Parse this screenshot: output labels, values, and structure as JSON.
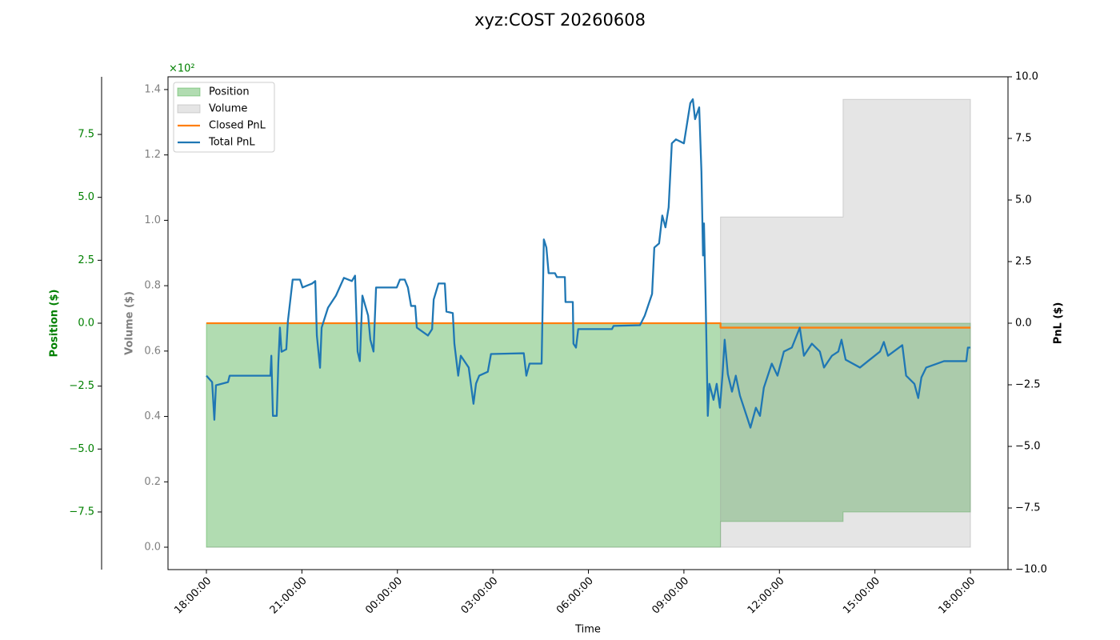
{
  "chart_data": {
    "type": "line",
    "title": "xyz:COST 20260608",
    "xlabel": "Time",
    "ylabel": "Position ($)",
    "y2label": "PnL ($)",
    "y3label": "Volume ($)",
    "y_offset_label": "×10²",
    "xlim": [
      -1.206,
      25.18
    ],
    "xticks": [
      {
        "value": 0,
        "label": "18:00:00"
      },
      {
        "value": 3,
        "label": "21:00:00"
      },
      {
        "value": 6,
        "label": "00:00:00"
      },
      {
        "value": 9,
        "label": "03:00:00"
      },
      {
        "value": 12,
        "label": "06:00:00"
      },
      {
        "value": 15,
        "label": "09:00:00"
      },
      {
        "value": 18,
        "label": "12:00:00"
      },
      {
        "value": 21,
        "label": "15:00:00"
      },
      {
        "value": 24,
        "label": "18:00:00"
      }
    ],
    "ylim": [
      -9.79,
      9.79
    ],
    "yticks": [
      {
        "value": -7.5,
        "label": "−7.5"
      },
      {
        "value": -5,
        "label": "−5.0"
      },
      {
        "value": -2.5,
        "label": "−2.5"
      },
      {
        "value": 0,
        "label": "0.0"
      },
      2.5,
      {
        "value": 5,
        "label": "5.0"
      },
      7.5
    ],
    "y2lim": [
      -10,
      10
    ],
    "y2ticks": [
      {
        "value": -10,
        "label": "−10.0"
      },
      {
        "value": -7.5,
        "label": "−7.5"
      },
      {
        "value": -5,
        "label": "−5.0"
      },
      {
        "value": -2.5,
        "label": "−2.5"
      },
      {
        "value": 0,
        "label": "0.0"
      },
      2.5,
      {
        "value": 5,
        "label": "5.0"
      },
      7.5,
      {
        "value": 10,
        "label": "10.0"
      }
    ],
    "y3lim": [
      -0.0685,
      1.439
    ],
    "y3ticks": [
      {
        "value": 0,
        "label": "0.0"
      },
      0.2,
      0.4,
      0.6,
      0.8,
      {
        "value": 1,
        "label": "1.0"
      },
      1.2,
      1.4
    ],
    "legend": "upper left",
    "series": [
      {
        "name": "Position",
        "kind": "area",
        "axis": "y",
        "color": "#2ca02c",
        "x": [
          0,
          16.15,
          16.15,
          20.0,
          20.0,
          24.0
        ],
        "values": [
          -8.9,
          -8.9,
          -7.88,
          -7.88,
          -7.5,
          -7.5
        ]
      },
      {
        "name": "Volume",
        "kind": "area",
        "axis": "y3",
        "color": "#999999",
        "x": [
          0,
          16.15,
          16.15,
          20.0,
          20.0,
          24.0
        ],
        "values": [
          0,
          0,
          1.01,
          1.01,
          1.37,
          1.37
        ]
      },
      {
        "name": "Closed PnL",
        "kind": "line",
        "axis": "y2",
        "color": "#ff7f0e",
        "x": [
          0,
          16.15,
          16.15,
          24.0
        ],
        "values": [
          0,
          0,
          -0.18,
          -0.18
        ]
      },
      {
        "name": "Total PnL",
        "kind": "line",
        "axis": "y2",
        "color": "#1f77b4",
        "x": [
          0.0,
          0.18,
          0.25,
          0.3,
          0.68,
          0.73,
          2.01,
          2.04,
          2.09,
          2.21,
          2.26,
          2.31,
          2.36,
          2.51,
          2.56,
          2.71,
          2.94,
          3.02,
          3.32,
          3.42,
          3.47,
          3.57,
          3.62,
          3.82,
          4.07,
          4.32,
          4.57,
          4.67,
          4.75,
          4.82,
          4.9,
          5.08,
          5.15,
          5.25,
          5.33,
          5.98,
          6.08,
          6.23,
          6.33,
          6.43,
          6.56,
          6.61,
          6.96,
          7.09,
          7.14,
          7.29,
          7.49,
          7.54,
          7.74,
          7.79,
          7.91,
          7.99,
          8.24,
          8.39,
          8.47,
          8.57,
          8.84,
          8.94,
          9.97,
          10.05,
          10.15,
          10.53,
          10.6,
          10.68,
          10.75,
          10.95,
          11.01,
          11.26,
          11.28,
          11.51,
          11.53,
          11.61,
          11.68,
          12.74,
          12.79,
          13.62,
          13.77,
          14.0,
          14.07,
          14.22,
          14.32,
          14.42,
          14.52,
          14.62,
          14.75,
          15.0,
          15.2,
          15.28,
          15.35,
          15.48,
          15.55,
          15.6,
          15.63,
          15.68,
          15.75,
          15.8,
          15.93,
          16.03,
          16.13,
          16.21,
          16.28,
          16.38,
          16.51,
          16.63,
          16.76,
          17.01,
          17.09,
          17.26,
          17.39,
          17.51,
          17.76,
          17.94,
          18.14,
          18.39,
          18.64,
          18.77,
          19.02,
          19.27,
          19.4,
          19.65,
          19.85,
          19.95,
          20.08,
          20.53,
          20.78,
          21.16,
          21.28,
          21.41,
          21.86,
          21.98,
          22.24,
          22.36,
          22.46,
          22.61,
          23.17,
          23.87,
          23.92,
          24.0
        ],
        "values": [
          -2.13,
          -2.39,
          -3.92,
          -2.52,
          -2.39,
          -2.13,
          -2.13,
          -1.32,
          -3.76,
          -3.76,
          -1.61,
          -0.18,
          -1.16,
          -1.06,
          0.08,
          1.77,
          1.77,
          1.45,
          1.61,
          1.71,
          -0.5,
          -1.81,
          -0.18,
          0.63,
          1.12,
          1.84,
          1.71,
          1.93,
          -1.15,
          -1.54,
          1.12,
          0.31,
          -0.67,
          -1.15,
          1.45,
          1.45,
          1.77,
          1.77,
          1.45,
          0.7,
          0.7,
          -0.18,
          -0.5,
          -0.24,
          0.96,
          1.61,
          1.61,
          0.47,
          0.41,
          -0.83,
          -2.13,
          -1.32,
          -1.8,
          -3.27,
          -2.45,
          -2.13,
          -1.97,
          -1.25,
          -1.22,
          -2.13,
          -1.64,
          -1.64,
          3.4,
          3.07,
          2.03,
          2.03,
          1.87,
          1.87,
          0.86,
          0.86,
          -0.83,
          -0.99,
          -0.24,
          -0.24,
          -0.11,
          -0.08,
          0.31,
          1.19,
          3.07,
          3.24,
          4.37,
          3.89,
          4.7,
          7.3,
          7.46,
          7.3,
          8.93,
          9.09,
          8.28,
          8.76,
          6.16,
          2.75,
          4.05,
          1.12,
          -3.76,
          -2.46,
          -3.11,
          -2.46,
          -3.43,
          -2.13,
          -0.67,
          -2.07,
          -2.78,
          -2.13,
          -2.94,
          -3.92,
          -4.24,
          -3.43,
          -3.76,
          -2.62,
          -1.64,
          -2.13,
          -1.15,
          -0.99,
          -0.18,
          -1.32,
          -0.83,
          -1.15,
          -1.8,
          -1.32,
          -1.15,
          -0.67,
          -1.48,
          -1.8,
          -1.54,
          -1.15,
          -0.76,
          -1.32,
          -0.89,
          -2.13,
          -2.46,
          -3.04,
          -2.2,
          -1.8,
          -1.54,
          -1.54,
          -0.99,
          -0.99
        ]
      }
    ]
  }
}
